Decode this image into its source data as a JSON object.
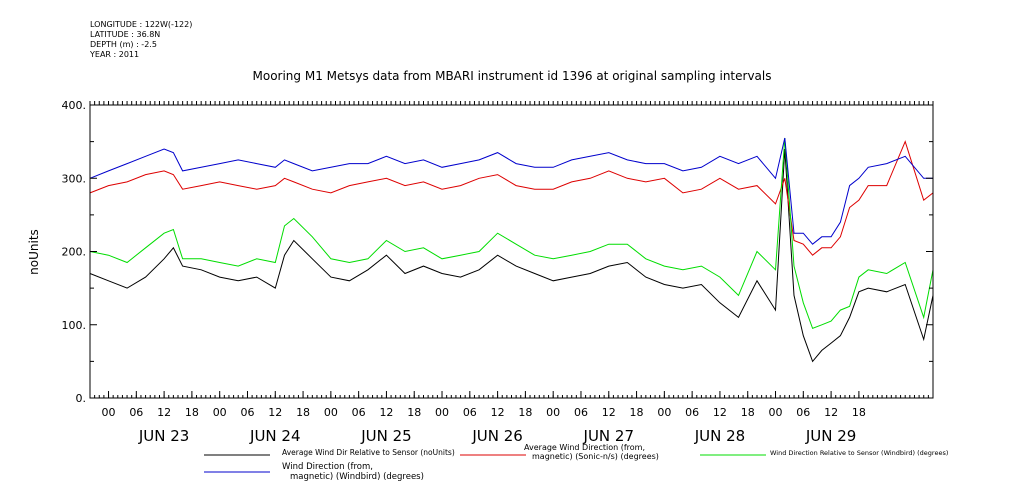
{
  "metadata": [
    "LONGITUDE : 122W(-122)",
    "LATITUDE : 36.8N",
    "DEPTH (m) : -2.5",
    "YEAR : 2011"
  ],
  "chart_data": {
    "type": "line",
    "title": "Mooring M1 Metsys data from MBARI instrument id 1396 at original sampling intervals",
    "ylabel": "noUnits",
    "xlabel": "",
    "ylim": [
      0,
      400
    ],
    "y_ticks": [
      0,
      100,
      200,
      300,
      400
    ],
    "y_tick_labels": [
      "0.",
      "100.",
      "200.",
      "300.",
      "400."
    ],
    "xlim_hours": [
      -4,
      178
    ],
    "hour_ticks": [
      0,
      6,
      12,
      18
    ],
    "hour_tick_labels": [
      "00",
      "06",
      "12",
      "18"
    ],
    "days": [
      "JUN 23",
      "JUN 24",
      "JUN 25",
      "JUN 26",
      "JUN 27",
      "JUN 28",
      "JUN 29"
    ],
    "grid": false,
    "legend_position": "bottom",
    "series": [
      {
        "name": "Average Wind Dir Relative to Sensor (noUnits)",
        "color": "#000000",
        "x_hours": [
          -4,
          0,
          4,
          8,
          12,
          14,
          16,
          20,
          24,
          28,
          32,
          36,
          38,
          40,
          44,
          48,
          52,
          56,
          60,
          64,
          68,
          72,
          76,
          80,
          84,
          88,
          92,
          96,
          100,
          104,
          108,
          112,
          116,
          120,
          124,
          128,
          132,
          136,
          140,
          144,
          146,
          148,
          150,
          152,
          154,
          156,
          158,
          160,
          162,
          164,
          168,
          172,
          176,
          178
        ],
        "values": [
          170,
          160,
          150,
          165,
          190,
          205,
          180,
          175,
          165,
          160,
          165,
          150,
          195,
          215,
          190,
          165,
          160,
          175,
          195,
          170,
          180,
          170,
          165,
          175,
          195,
          180,
          170,
          160,
          165,
          170,
          180,
          185,
          165,
          155,
          150,
          155,
          130,
          110,
          160,
          120,
          340,
          140,
          85,
          50,
          65,
          75,
          85,
          110,
          145,
          150,
          145,
          155,
          80,
          140
        ]
      },
      {
        "name": "Average Wind Direction (from, magnetic) (Sonic-n/s) (degrees)",
        "color": "#dd0000",
        "x_hours": [
          -4,
          0,
          4,
          8,
          12,
          14,
          16,
          20,
          24,
          28,
          32,
          36,
          38,
          40,
          44,
          48,
          52,
          56,
          60,
          64,
          68,
          72,
          76,
          80,
          84,
          88,
          92,
          96,
          100,
          104,
          108,
          112,
          116,
          120,
          124,
          128,
          132,
          136,
          140,
          144,
          146,
          148,
          150,
          152,
          154,
          156,
          158,
          160,
          162,
          164,
          168,
          172,
          176,
          178
        ],
        "values": [
          280,
          290,
          295,
          305,
          310,
          305,
          285,
          290,
          295,
          290,
          285,
          290,
          300,
          295,
          285,
          280,
          290,
          295,
          300,
          290,
          295,
          285,
          290,
          300,
          305,
          290,
          285,
          285,
          295,
          300,
          310,
          300,
          295,
          300,
          280,
          285,
          300,
          285,
          290,
          265,
          300,
          215,
          210,
          195,
          205,
          205,
          220,
          260,
          270,
          290,
          290,
          350,
          270,
          280
        ]
      },
      {
        "name": "Wind Direction Relative to Sensor (Windbird) (degrees)",
        "color": "#00dd00",
        "x_hours": [
          -4,
          0,
          4,
          8,
          12,
          14,
          16,
          20,
          24,
          28,
          32,
          36,
          38,
          40,
          44,
          48,
          52,
          56,
          60,
          64,
          68,
          72,
          76,
          80,
          84,
          88,
          92,
          96,
          100,
          104,
          108,
          112,
          116,
          120,
          124,
          128,
          132,
          136,
          140,
          144,
          146,
          148,
          150,
          152,
          154,
          156,
          158,
          160,
          162,
          164,
          168,
          172,
          176,
          178
        ],
        "values": [
          200,
          195,
          185,
          205,
          225,
          230,
          190,
          190,
          185,
          180,
          190,
          185,
          235,
          245,
          220,
          190,
          185,
          190,
          215,
          200,
          205,
          190,
          195,
          200,
          225,
          210,
          195,
          190,
          195,
          200,
          210,
          210,
          190,
          180,
          175,
          180,
          165,
          140,
          200,
          175,
          355,
          180,
          130,
          95,
          100,
          105,
          120,
          125,
          165,
          175,
          170,
          185,
          110,
          175
        ]
      },
      {
        "name": "Wind Direction (from, magnetic) (Windbird) (degrees)",
        "color": "#0000cc",
        "x_hours": [
          -4,
          0,
          4,
          8,
          12,
          14,
          16,
          20,
          24,
          28,
          32,
          36,
          38,
          40,
          44,
          48,
          52,
          56,
          60,
          64,
          68,
          72,
          76,
          80,
          84,
          88,
          92,
          96,
          100,
          104,
          108,
          112,
          116,
          120,
          124,
          128,
          132,
          136,
          140,
          144,
          146,
          148,
          150,
          152,
          154,
          156,
          158,
          160,
          162,
          164,
          168,
          172,
          176,
          178
        ],
        "values": [
          300,
          310,
          320,
          330,
          340,
          335,
          310,
          315,
          320,
          325,
          320,
          315,
          325,
          320,
          310,
          315,
          320,
          320,
          330,
          320,
          325,
          315,
          320,
          325,
          335,
          320,
          315,
          315,
          325,
          330,
          335,
          325,
          320,
          320,
          310,
          315,
          330,
          320,
          330,
          300,
          355,
          225,
          225,
          210,
          220,
          220,
          240,
          290,
          300,
          315,
          320,
          330,
          300,
          300
        ]
      }
    ]
  }
}
